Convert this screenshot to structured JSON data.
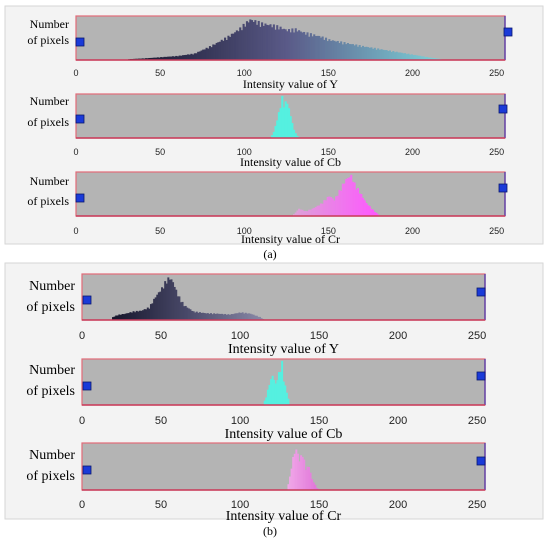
{
  "captions": {
    "a": "(a)",
    "b": "(b)"
  },
  "chart_data": [
    {
      "type": "bar",
      "panel": "a",
      "channel": "Y",
      "ylabel": [
        "Number",
        "of pixels"
      ],
      "xlabel": "Intensity value of Y",
      "xlim": [
        0,
        255
      ],
      "xticks": [
        0,
        50,
        100,
        150,
        200,
        250
      ],
      "colormap": [
        "#15152a",
        "#5a5a88",
        "#7fd8dd"
      ],
      "colorRange": [
        30,
        220
      ],
      "bins": [
        [
          30,
          0.02
        ],
        [
          40,
          0.04
        ],
        [
          50,
          0.07
        ],
        [
          60,
          0.1
        ],
        [
          70,
          0.16
        ],
        [
          80,
          0.35
        ],
        [
          90,
          0.58
        ],
        [
          97,
          0.78
        ],
        [
          100,
          0.9
        ],
        [
          103,
          1.0
        ],
        [
          106,
          0.96
        ],
        [
          110,
          0.9
        ],
        [
          115,
          0.87
        ],
        [
          120,
          0.82
        ],
        [
          125,
          0.74
        ],
        [
          130,
          0.76
        ],
        [
          135,
          0.68
        ],
        [
          140,
          0.63
        ],
        [
          145,
          0.58
        ],
        [
          150,
          0.5
        ],
        [
          160,
          0.42
        ],
        [
          170,
          0.34
        ],
        [
          180,
          0.27
        ],
        [
          190,
          0.2
        ],
        [
          200,
          0.13
        ],
        [
          210,
          0.06
        ],
        [
          217,
          0.02
        ]
      ]
    },
    {
      "type": "bar",
      "panel": "a",
      "channel": "Cb",
      "ylabel": [
        "Number",
        "of pixels"
      ],
      "xlabel": "Intensity value of Cb",
      "xlim": [
        0,
        255
      ],
      "xticks": [
        0,
        50,
        100,
        150,
        200,
        250
      ],
      "colormap": [
        "#55f0e0",
        "#55f0e0"
      ],
      "colorRange": [
        0,
        255
      ],
      "bins": [
        [
          115,
          0.0
        ],
        [
          117,
          0.15
        ],
        [
          119,
          0.45
        ],
        [
          121,
          0.8
        ],
        [
          122,
          1.0
        ],
        [
          123,
          0.85
        ],
        [
          125,
          0.9
        ],
        [
          127,
          0.55
        ],
        [
          129,
          0.2
        ],
        [
          131,
          0.05
        ],
        [
          133,
          0.0
        ]
      ]
    },
    {
      "type": "bar",
      "panel": "a",
      "channel": "Cr",
      "ylabel": [
        "Number",
        "of pixels"
      ],
      "xlabel": "Intensity value of Cr",
      "xlim": [
        0,
        255
      ],
      "xticks": [
        0,
        50,
        100,
        150,
        200,
        250
      ],
      "colormap": [
        "#d9a8d4",
        "#ff55ff"
      ],
      "colorRange": [
        125,
        180
      ],
      "bins": [
        [
          128,
          0.0
        ],
        [
          132,
          0.18
        ],
        [
          136,
          0.12
        ],
        [
          140,
          0.18
        ],
        [
          145,
          0.3
        ],
        [
          150,
          0.5
        ],
        [
          153,
          0.4
        ],
        [
          156,
          0.62
        ],
        [
          159,
          0.85
        ],
        [
          161,
          0.95
        ],
        [
          163,
          1.0
        ],
        [
          165,
          0.8
        ],
        [
          168,
          0.6
        ],
        [
          172,
          0.32
        ],
        [
          176,
          0.15
        ],
        [
          180,
          0.0
        ]
      ]
    },
    {
      "type": "bar",
      "panel": "b",
      "channel": "Y",
      "ylabel": [
        "Number",
        "of pixels"
      ],
      "xlabel": "Intensity value of Y",
      "xlim": [
        0,
        255
      ],
      "xticks": [
        0,
        50,
        100,
        150,
        200,
        250
      ],
      "colormap": [
        "#15152a",
        "#4a4a6a",
        "#8a8aa8"
      ],
      "colorRange": [
        18,
        115
      ],
      "bins": [
        [
          18,
          0.05
        ],
        [
          22,
          0.12
        ],
        [
          27,
          0.15
        ],
        [
          32,
          0.2
        ],
        [
          37,
          0.22
        ],
        [
          42,
          0.3
        ],
        [
          46,
          0.55
        ],
        [
          50,
          0.75
        ],
        [
          53,
          0.95
        ],
        [
          55,
          1.0
        ],
        [
          57,
          0.9
        ],
        [
          60,
          0.6
        ],
        [
          64,
          0.35
        ],
        [
          70,
          0.2
        ],
        [
          78,
          0.16
        ],
        [
          85,
          0.15
        ],
        [
          93,
          0.13
        ],
        [
          100,
          0.18
        ],
        [
          106,
          0.15
        ],
        [
          112,
          0.07
        ],
        [
          115,
          0.0
        ]
      ]
    },
    {
      "type": "bar",
      "panel": "b",
      "channel": "Cb",
      "ylabel": [
        "Number",
        "of pixels"
      ],
      "xlabel": "Intensity value of Cb",
      "xlim": [
        0,
        255
      ],
      "xticks": [
        0,
        50,
        100,
        150,
        200,
        250
      ],
      "colormap": [
        "#55f0e0",
        "#55f0e0"
      ],
      "colorRange": [
        0,
        255
      ],
      "bins": [
        [
          114,
          0.0
        ],
        [
          116,
          0.2
        ],
        [
          118,
          0.5
        ],
        [
          120,
          0.7
        ],
        [
          122,
          0.5
        ],
        [
          124,
          0.75
        ],
        [
          126,
          1.0
        ],
        [
          127,
          0.6
        ],
        [
          129,
          0.3
        ],
        [
          131,
          0.0
        ]
      ]
    },
    {
      "type": "bar",
      "panel": "b",
      "channel": "Cr",
      "ylabel": [
        "Number",
        "of pixels"
      ],
      "xlabel": "Intensity value of Cr",
      "xlim": [
        0,
        255
      ],
      "xticks": [
        0,
        50,
        100,
        150,
        200,
        250
      ],
      "colormap": [
        "#f0a8e8",
        "#e070d8"
      ],
      "colorRange": [
        130,
        150
      ],
      "bins": [
        [
          129,
          0.0
        ],
        [
          131,
          0.3
        ],
        [
          133,
          0.75
        ],
        [
          135,
          0.95
        ],
        [
          137,
          0.7
        ],
        [
          139,
          0.85
        ],
        [
          141,
          0.5
        ],
        [
          143,
          0.55
        ],
        [
          145,
          0.25
        ],
        [
          148,
          0.05
        ],
        [
          150,
          0.0
        ]
      ]
    }
  ]
}
